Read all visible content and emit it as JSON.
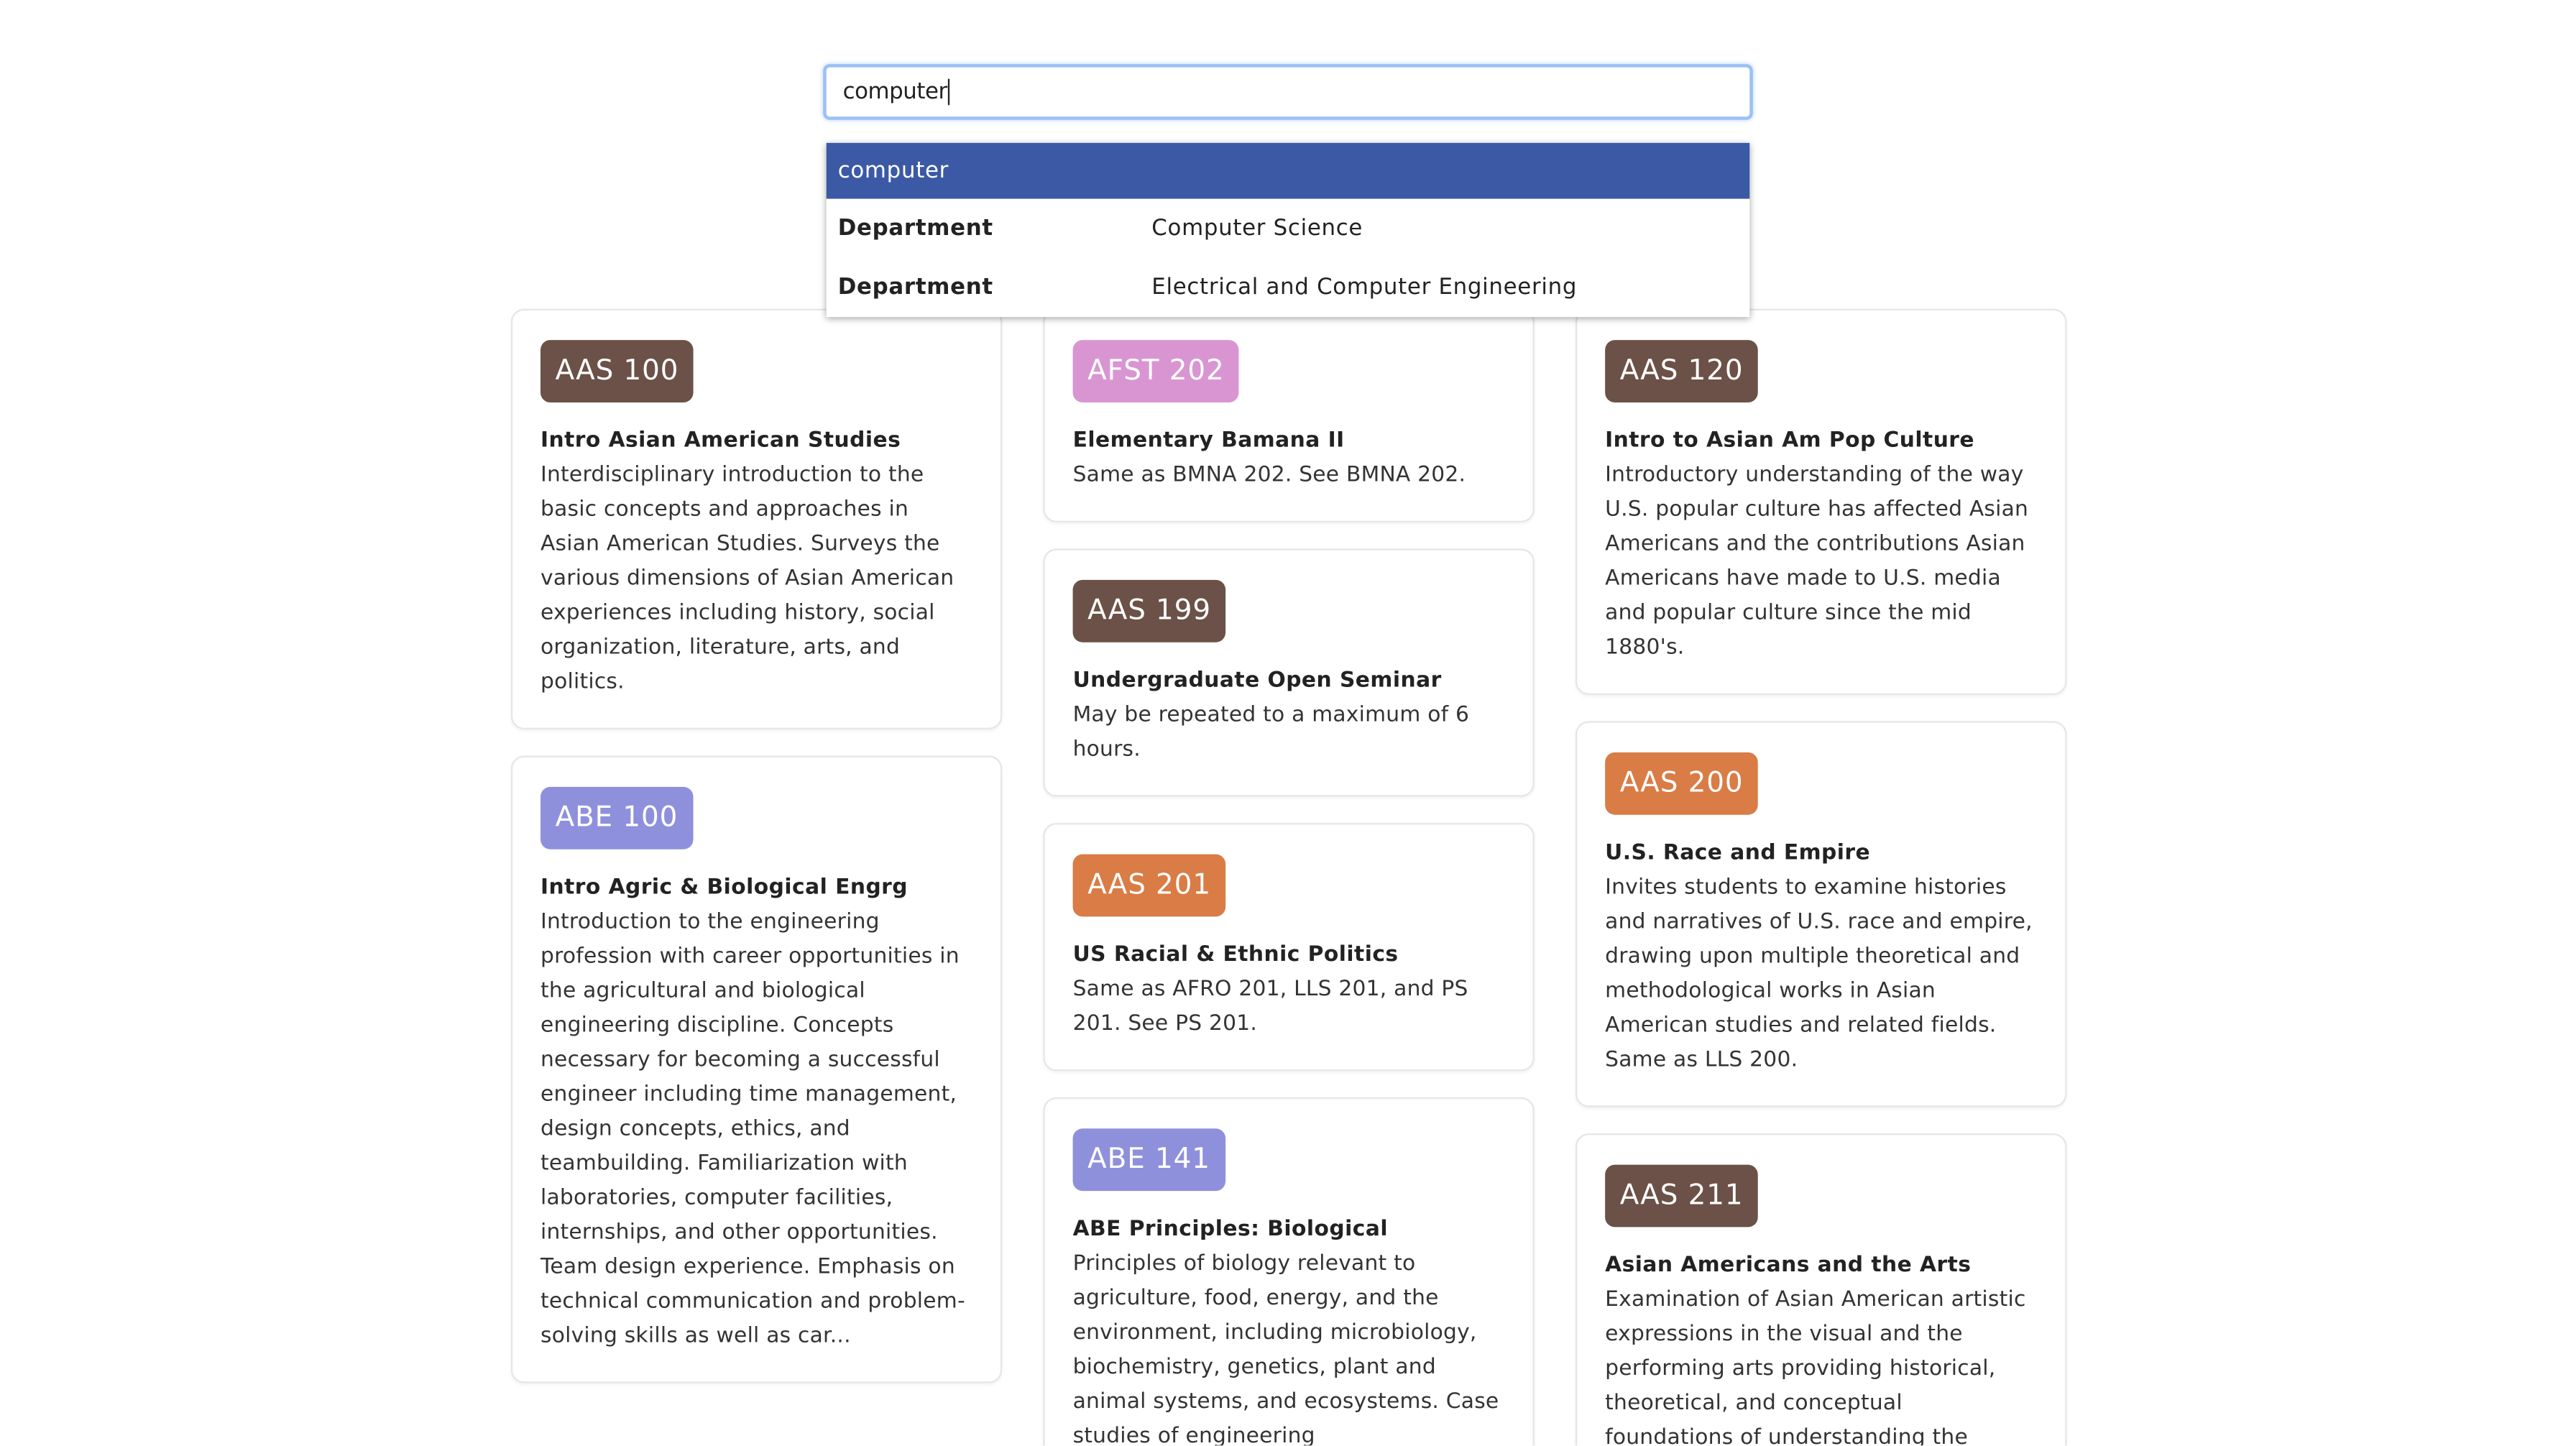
{
  "search": {
    "query": "computer",
    "options": [
      {
        "text": "computer"
      },
      {
        "label": "Department",
        "value": "Computer Science"
      },
      {
        "label": "Department",
        "value": "Electrical and Computer Engineering"
      }
    ]
  },
  "columns": [
    {
      "cards": [
        {
          "code": "AAS 100",
          "color": "#6b5147",
          "title": "Intro Asian American Studies",
          "description": "Interdisciplinary introduction to the basic concepts and approaches in Asian American Studies. Surveys the various dimensions of Asian American experiences including history, social organization, literature, arts, and politics."
        },
        {
          "code": "ABE 100",
          "color": "#8f90dc",
          "title": "Intro Agric & Biological Engrg",
          "description": "Introduction to the engineering profession with career opportunities in the agricultural and biological engineering discipline. Concepts necessary for becoming a successful engineer including time management, design concepts, ethics, and teambuilding. Familiarization with laboratories, computer facilities, internships, and other opportunities. Team design experience. Emphasis on technical communication and problem-solving skills as well as car..."
        }
      ]
    },
    {
      "cards": [
        {
          "code": "AFST 202",
          "color": "#d995d2",
          "title": "Elementary Bamana II",
          "description": "Same as BMNA 202. See BMNA 202."
        },
        {
          "code": "AAS 199",
          "color": "#6b5147",
          "title": "Undergraduate Open Seminar",
          "description": "May be repeated to a maximum of 6 hours."
        },
        {
          "code": "AAS 201",
          "color": "#d97c45",
          "title": "US Racial & Ethnic Politics",
          "description": "Same as AFRO 201, LLS 201, and PS 201. See PS 201."
        },
        {
          "code": "ABE 141",
          "color": "#8f90dc",
          "title": "ABE Principles: Biological",
          "description": "Principles of biology relevant to agriculture, food, energy, and the environment, including microbiology, biochemistry, genetics, plant and animal systems, and ecosystems. Case studies of engineering"
        }
      ]
    },
    {
      "cards": [
        {
          "code": "AAS 120",
          "color": "#6b5147",
          "title": "Intro to Asian Am Pop Culture",
          "description": "Introductory understanding of the way U.S. popular culture has affected Asian Americans and the contributions Asian Americans have made to U.S. media and popular culture since the mid 1880's."
        },
        {
          "code": "AAS 200",
          "color": "#d97c45",
          "title": "U.S. Race and Empire",
          "description": "Invites students to examine histories and narratives of U.S. race and empire, drawing upon multiple theoretical and methodological works in Asian American studies and related fields. Same as LLS 200."
        },
        {
          "code": "AAS 211",
          "color": "#6b5147",
          "title": "Asian Americans and the Arts",
          "description": "Examination of Asian American artistic expressions in the visual and the performing arts providing historical, theoretical, and conceptual foundations of understanding the"
        }
      ]
    }
  ]
}
